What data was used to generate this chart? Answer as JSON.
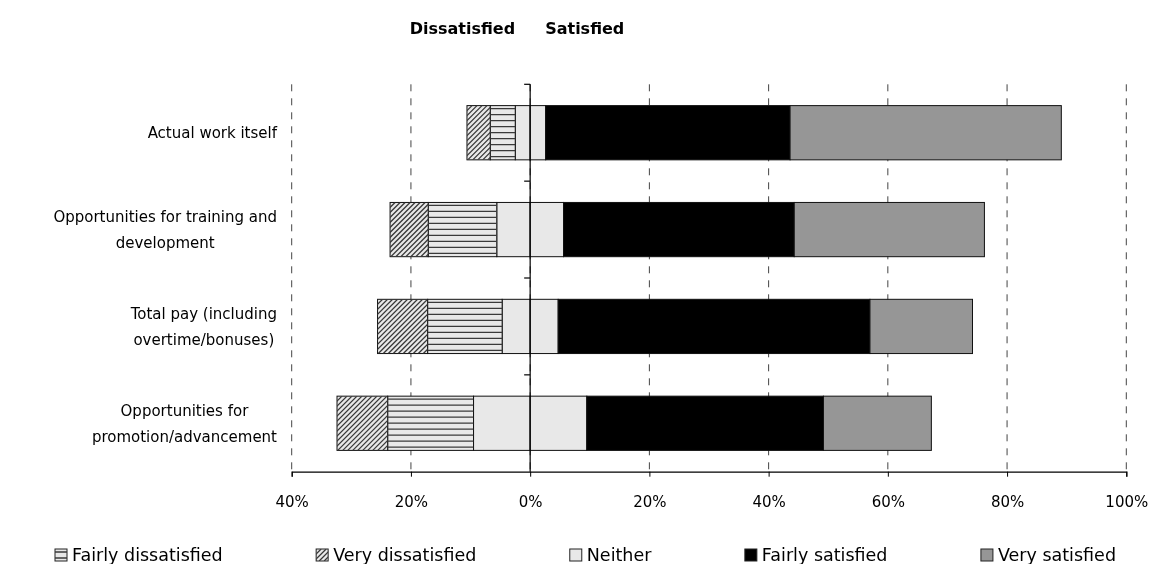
{
  "chart_data": {
    "type": "bar",
    "orientation": "horizontal",
    "stacked": true,
    "annotations": [
      "Dissatisfied",
      "Satisfied"
    ],
    "categories": [
      "Actual work itself",
      "Opportunities for training and development",
      "Total pay (including overtime/bonuses)",
      "Opportunities for promotion/advancement"
    ],
    "series": [
      {
        "color": "#e8e8e8",
        "values": [
          -2.5,
          -5.6,
          -4.7,
          -9.5
        ]
      },
      {
        "name": "Fairly dissatisfied",
        "color": "#e8e8e8",
        "values": [
          -4.2,
          -11.5,
          -12.5,
          -14.4
        ]
      },
      {
        "name": "Very dissatisfied",
        "color": "#e8e8e8",
        "values": [
          -3.9,
          -6.4,
          -8.4,
          -8.5
        ]
      },
      {
        "name": "Neither",
        "color": "#e8e8e8",
        "values": [
          2.6,
          5.6,
          4.7,
          9.5
        ]
      },
      {
        "name": "Fairly satisfied",
        "color": "#000000",
        "values": [
          41.0,
          38.7,
          52.3,
          39.7
        ]
      },
      {
        "name": "Very satisfied",
        "color": "#969696",
        "values": [
          45.5,
          31.9,
          17.2,
          18.1
        ]
      }
    ],
    "xlim": [
      -40,
      100
    ],
    "xticks": [
      {
        "value": -40,
        "label": "40%"
      },
      {
        "value": -20,
        "label": "20%"
      },
      {
        "value": 0,
        "label": "0%"
      },
      {
        "value": 20,
        "label": "20%"
      },
      {
        "value": 40,
        "label": "40%"
      },
      {
        "value": 60,
        "label": "60%"
      },
      {
        "value": 80,
        "label": "80%"
      },
      {
        "value": 100,
        "label": "100%"
      }
    ],
    "grid": "x",
    "legend": "bottom"
  }
}
